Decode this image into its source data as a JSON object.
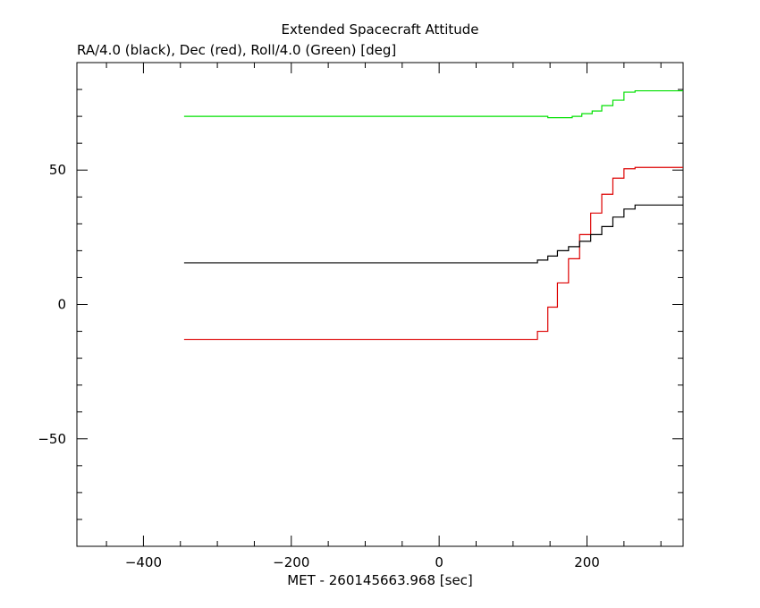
{
  "chart_data": {
    "type": "line",
    "title": "Extended Spacecraft Attitude",
    "ylabel": "RA/4.0 (black), Dec (red), Roll/4.0 (Green) [deg]",
    "xlabel": "MET - 260145663.968 [sec]",
    "xlim": [
      -490,
      330
    ],
    "ylim": [
      -90,
      90
    ],
    "x_ticks": [
      -400,
      -200,
      0,
      200
    ],
    "y_ticks": [
      -50,
      0,
      50
    ],
    "grid": false,
    "step": true,
    "series": [
      {
        "color": "#00e000",
        "x": [
          -345,
          133,
          147,
          180,
          193,
          207,
          220,
          235,
          250,
          265,
          330
        ],
        "y": [
          70,
          70,
          69.5,
          70,
          71,
          72,
          74,
          76,
          79,
          79.5,
          79.5
        ]
      },
      {
        "color": "#dd0000",
        "x": [
          -345,
          133,
          147,
          160,
          175,
          190,
          205,
          220,
          235,
          250,
          265,
          330
        ],
        "y": [
          -13,
          -10,
          -1,
          8,
          17,
          26,
          34,
          41,
          47,
          50.5,
          51,
          51
        ]
      },
      {
        "color": "#000000",
        "x": [
          -345,
          133,
          147,
          160,
          175,
          190,
          205,
          220,
          235,
          250,
          265,
          330
        ],
        "y": [
          15.5,
          16.5,
          18,
          20,
          21.5,
          23.5,
          26,
          29,
          32.5,
          35.5,
          37,
          37
        ]
      }
    ]
  }
}
